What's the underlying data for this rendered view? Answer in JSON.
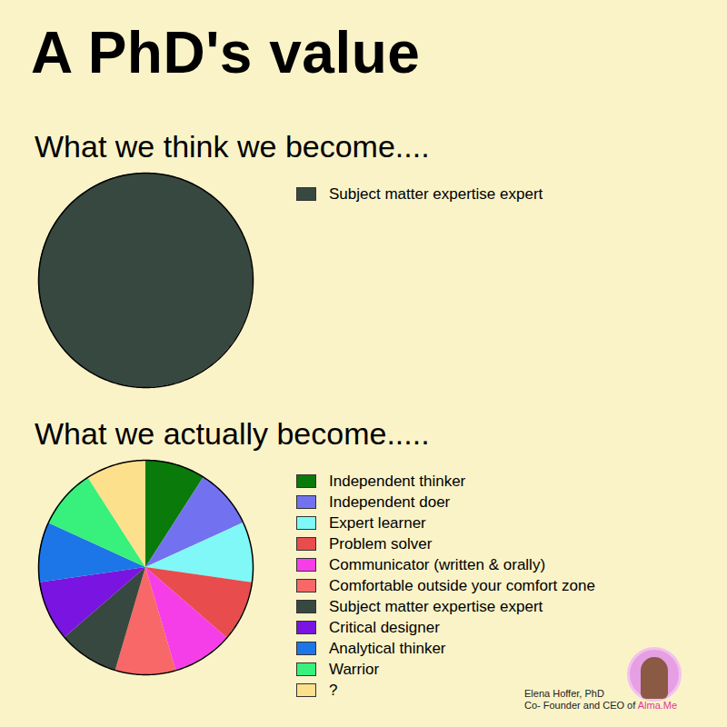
{
  "title": "A PhD's value",
  "chart_data": [
    {
      "type": "pie",
      "title": "What we think we become....",
      "categories": [
        "Subject matter expertise expert"
      ],
      "values": [
        100
      ],
      "colors": [
        "#374840"
      ],
      "legend": "right"
    },
    {
      "type": "pie",
      "title": "What we actually become.....",
      "categories": [
        "Independent thinker",
        "Independent doer",
        "Expert learner",
        "Problem solver",
        "Communicator (written & orally)",
        "Comfortable outside your comfort zone",
        "Subject matter expertise expert",
        "Critical designer",
        "Analytical thinker",
        "Warrior",
        "?"
      ],
      "values": [
        9.09,
        9.09,
        9.09,
        9.09,
        9.09,
        9.09,
        9.09,
        9.09,
        9.09,
        9.09,
        9.09
      ],
      "colors": [
        "#0a7a0a",
        "#7272f0",
        "#80f8f8",
        "#e84c4c",
        "#f63ee8",
        "#f86868",
        "#374840",
        "#7a14e0",
        "#1c76e8",
        "#38f07c",
        "#fde08c"
      ],
      "legend": "right"
    }
  ],
  "credit": {
    "name": "Elena Hoffer, PhD",
    "role": "Co- Founder and CEO of Alma.Me"
  }
}
